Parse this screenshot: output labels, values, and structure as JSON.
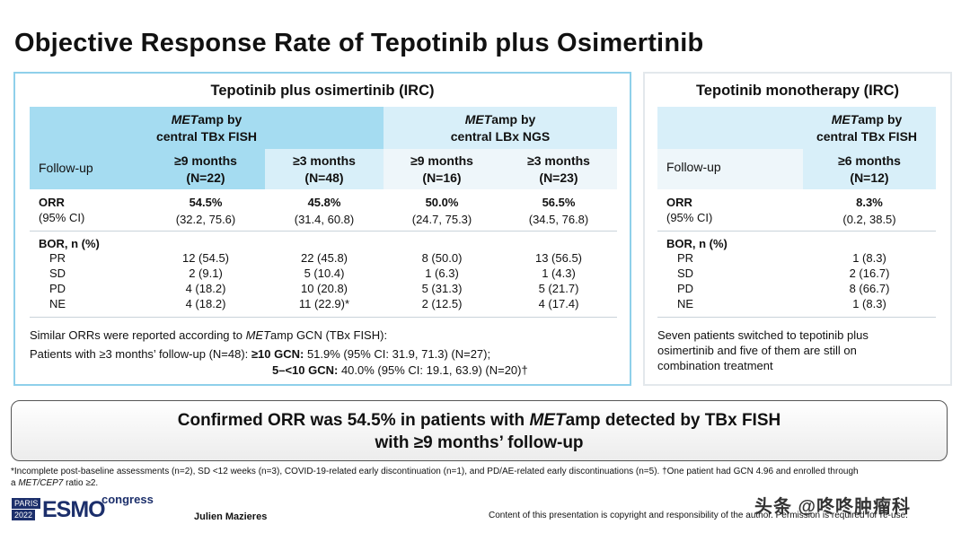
{
  "title": "Objective Response Rate of Tepotinib plus Osimertinib",
  "left_panel": {
    "title": "Tepotinib plus osimertinib (IRC)",
    "group1": {
      "italic": "MET",
      "rest": "amp by",
      "line2": "central TBx FISH"
    },
    "group2": {
      "italic": "MET",
      "rest": "amp by",
      "line2": "central LBx NGS"
    },
    "followup_label": "Follow-up",
    "columns": [
      {
        "months": "≥9 months",
        "n": "(N=22)"
      },
      {
        "months": "≥3 months",
        "n": "(N=48)"
      },
      {
        "months": "≥9 months",
        "n": "(N=16)"
      },
      {
        "months": "≥3 months",
        "n": "(N=23)"
      }
    ],
    "orr_label": "ORR",
    "ci_label": "(95% CI)",
    "orr_values": [
      "54.5%",
      "45.8%",
      "50.0%",
      "56.5%"
    ],
    "ci_values": [
      "(32.2, 75.6)",
      "(31.4, 60.8)",
      "(24.7, 75.3)",
      "(34.5, 76.8)"
    ],
    "bor_label": "BOR, n (%)",
    "bor_rows": [
      {
        "label": "PR",
        "values": [
          "12 (54.5)",
          "22 (45.8)",
          "8 (50.0)",
          "13 (56.5)"
        ]
      },
      {
        "label": "SD",
        "values": [
          "2 (9.1)",
          "5 (10.4)",
          "1 (6.3)",
          "1 (4.3)"
        ]
      },
      {
        "label": "PD",
        "values": [
          "4 (18.2)",
          "10 (20.8)",
          "5 (31.3)",
          "5 (21.7)"
        ]
      },
      {
        "label": "NE",
        "values": [
          "4 (18.2)",
          "11 (22.9)*",
          "2 (12.5)",
          "4 (17.4)"
        ]
      }
    ],
    "note1_prefix": "Similar ORRs were reported according to ",
    "note1_italic": "MET",
    "note1_suffix": "amp GCN (TBx FISH):",
    "note2_prefix": "Patients with ≥3 months’ follow-up (N=48): ",
    "note2_bold": "≥10 GCN:",
    "note2_rest": " 51.9% (95% CI: 31.9, 71.3) (N=27);",
    "note3_bold": "5–<10 GCN:",
    "note3_rest": " 40.0% (95% CI: 19.1, 63.9) (N=20)†"
  },
  "right_panel": {
    "title": "Tepotinib monotherapy (IRC)",
    "group": {
      "italic": "MET",
      "rest": "amp by",
      "line2": "central TBx FISH"
    },
    "followup_label": "Follow-up",
    "column": {
      "months": "≥6 months",
      "n": "(N=12)"
    },
    "orr_label": "ORR",
    "ci_label": "(95% CI)",
    "orr_value": "8.3%",
    "ci_value": "(0.2, 38.5)",
    "bor_label": "BOR, n (%)",
    "bor_rows": [
      {
        "label": "PR",
        "value": "1 (8.3)"
      },
      {
        "label": "SD",
        "value": "2 (16.7)"
      },
      {
        "label": "PD",
        "value": "8 (66.7)"
      },
      {
        "label": "NE",
        "value": "1 (8.3)"
      }
    ],
    "note": [
      "Seven patients switched to tepotinib plus",
      "osimertinib and five of them are still on",
      "combination treatment"
    ]
  },
  "banner": {
    "line1_prefix": "Confirmed ORR was 54.5% in patients with ",
    "line1_italic": "MET",
    "line1_suffix": "amp detected by TBx FISH",
    "line2": "with ≥9 months’ follow-up"
  },
  "footnote": {
    "line1": "*Incomplete post-baseline assessments (n=2), SD <12 weeks (n=3), COVID-19-related early discontinuation (n=1), and PD/AE-related early discontinuations (n=5). †One patient had GCN 4.96 and enrolled through",
    "line2_prefix": "a ",
    "line2_italic": "MET/CEP7",
    "line2_suffix": " ratio ≥2."
  },
  "logo": {
    "top": "PARIS",
    "year": "2022",
    "name": "ESMO",
    "suffix": "congress"
  },
  "presenter": "Julien Mazieres",
  "copyright": "Content of this presentation is copyright and responsibility of the author. Permission is required for re-use.",
  "watermark": "头条 @咚咚肿瘤科",
  "colors": {
    "header_dark": "#a5dcf1",
    "header_light": "#d8eff9",
    "border": "#8fd0ea"
  }
}
